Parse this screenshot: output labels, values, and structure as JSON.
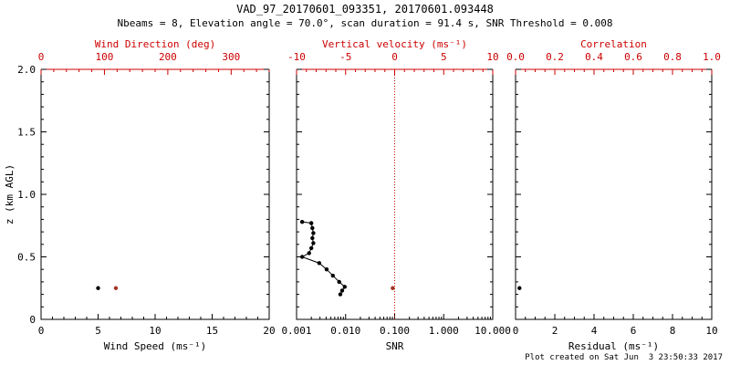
{
  "header": {
    "title": "VAD_97_20170601_093351, 20170601.093448",
    "subtitle": "Nbeams = 8, Elevation angle = 70.0°, scan duration = 91.4 s, SNR Threshold = 0.008"
  },
  "footer": {
    "created": "Plot created on Sat Jun  3 23:50:33 2017"
  },
  "colors": {
    "axis": "#000000",
    "red_axis": "#cc0000",
    "red_point": "#a03420",
    "background": "#ffffff"
  },
  "chart_data": [
    {
      "type": "scatter",
      "panel": "wind",
      "x_bottom": {
        "label": "Wind Speed (ms⁻¹)",
        "min": 0,
        "max": 20,
        "ticks": [
          0,
          5,
          10,
          15,
          20
        ],
        "tick_labels": [
          "0",
          "5",
          "10",
          "15",
          "20"
        ],
        "minor_step": 1
      },
      "x_top": {
        "label": "Wind Direction (deg)",
        "min": 0,
        "max": 360,
        "ticks": [
          0,
          100,
          200,
          300
        ],
        "tick_labels": [
          "0",
          "100",
          "200",
          "300"
        ],
        "minor_step": 20
      },
      "y": {
        "label": "z (km AGL)",
        "min": 0,
        "max": 2,
        "ticks": [
          0,
          0.5,
          1.0,
          1.5,
          2.0
        ],
        "tick_labels": [
          "0",
          "0.5",
          "1.0",
          "1.5",
          "2.0"
        ],
        "minor_step": 0.1
      },
      "series": [
        {
          "name": "wind-speed",
          "axis": "bottom",
          "color": "#000000",
          "line": false,
          "points": [
            {
              "x": 5.0,
              "z": 0.25
            }
          ]
        },
        {
          "name": "wind-direction",
          "axis": "top",
          "color": "#a03420",
          "line": false,
          "points": [
            {
              "x": 118,
              "z": 0.25
            }
          ]
        }
      ]
    },
    {
      "type": "scatter",
      "panel": "snr",
      "x_bottom": {
        "label": "SNR",
        "scale": "log",
        "min": 0.001,
        "max": 10,
        "ticks": [
          0.001,
          0.01,
          0.1,
          1,
          10
        ],
        "tick_labels": [
          "0.001",
          "0.010",
          "0.100",
          "1.000",
          "10.000"
        ]
      },
      "x_top": {
        "label": "Vertical velocity (ms⁻¹)",
        "min": -10,
        "max": 10,
        "ticks": [
          -10,
          -5,
          0,
          5,
          10
        ],
        "tick_labels": [
          "-10",
          "-5",
          "0",
          "5",
          "10"
        ],
        "minor_step": 1
      },
      "y": {
        "label": "",
        "min": 0,
        "max": 2,
        "ticks": [
          0,
          0.5,
          1.0,
          1.5,
          2.0
        ],
        "tick_labels": [
          "0",
          "0.5",
          "1.0",
          "1.5",
          "2.0"
        ],
        "minor_step": 0.1
      },
      "reference_line": {
        "axis": "top",
        "x": 0,
        "style": "dotted",
        "color": "#cc0000"
      },
      "series": [
        {
          "name": "snr-profile",
          "axis": "bottom",
          "color": "#000000",
          "line": true,
          "points": [
            {
              "x": 0.0013,
              "z": 0.78
            },
            {
              "x": 0.002,
              "z": 0.77
            },
            {
              "x": 0.0021,
              "z": 0.73
            },
            {
              "x": 0.0022,
              "z": 0.69
            },
            {
              "x": 0.0021,
              "z": 0.65
            },
            {
              "x": 0.0022,
              "z": 0.61
            },
            {
              "x": 0.002,
              "z": 0.57
            },
            {
              "x": 0.0018,
              "z": 0.53
            },
            {
              "x": 0.0013,
              "z": 0.5
            },
            {
              "x": 0.0029,
              "z": 0.45
            },
            {
              "x": 0.0041,
              "z": 0.4
            },
            {
              "x": 0.0055,
              "z": 0.35
            },
            {
              "x": 0.0074,
              "z": 0.3
            },
            {
              "x": 0.0096,
              "z": 0.26
            },
            {
              "x": 0.0085,
              "z": 0.23
            },
            {
              "x": 0.0078,
              "z": 0.2
            }
          ]
        },
        {
          "name": "vertical-velocity",
          "axis": "top",
          "color": "#a03420",
          "line": false,
          "points": [
            {
              "x": -0.2,
              "z": 0.25
            }
          ]
        }
      ]
    },
    {
      "type": "scatter",
      "panel": "residual",
      "x_bottom": {
        "label": "Residual (ms⁻¹)",
        "min": 0,
        "max": 10,
        "ticks": [
          0,
          2,
          4,
          6,
          8,
          10
        ],
        "tick_labels": [
          "0",
          "2",
          "4",
          "6",
          "8",
          "10"
        ],
        "minor_step": 0.5
      },
      "x_top": {
        "label": "Correlation",
        "min": 0,
        "max": 1,
        "ticks": [
          0,
          0.2,
          0.4,
          0.6,
          0.8,
          1.0
        ],
        "tick_labels": [
          "0.0",
          "0.2",
          "0.4",
          "0.6",
          "0.8",
          "1.0"
        ],
        "minor_step": 0.05
      },
      "y": {
        "label": "",
        "min": 0,
        "max": 2,
        "ticks": [
          0,
          0.5,
          1.0,
          1.5,
          2.0
        ],
        "tick_labels": [
          "0",
          "0.5",
          "1.0",
          "1.5",
          "2.0"
        ],
        "minor_step": 0.1
      },
      "series": [
        {
          "name": "residual",
          "axis": "bottom",
          "color": "#000000",
          "line": false,
          "points": [
            {
              "x": 0.2,
              "z": 0.25
            }
          ]
        }
      ]
    }
  ]
}
